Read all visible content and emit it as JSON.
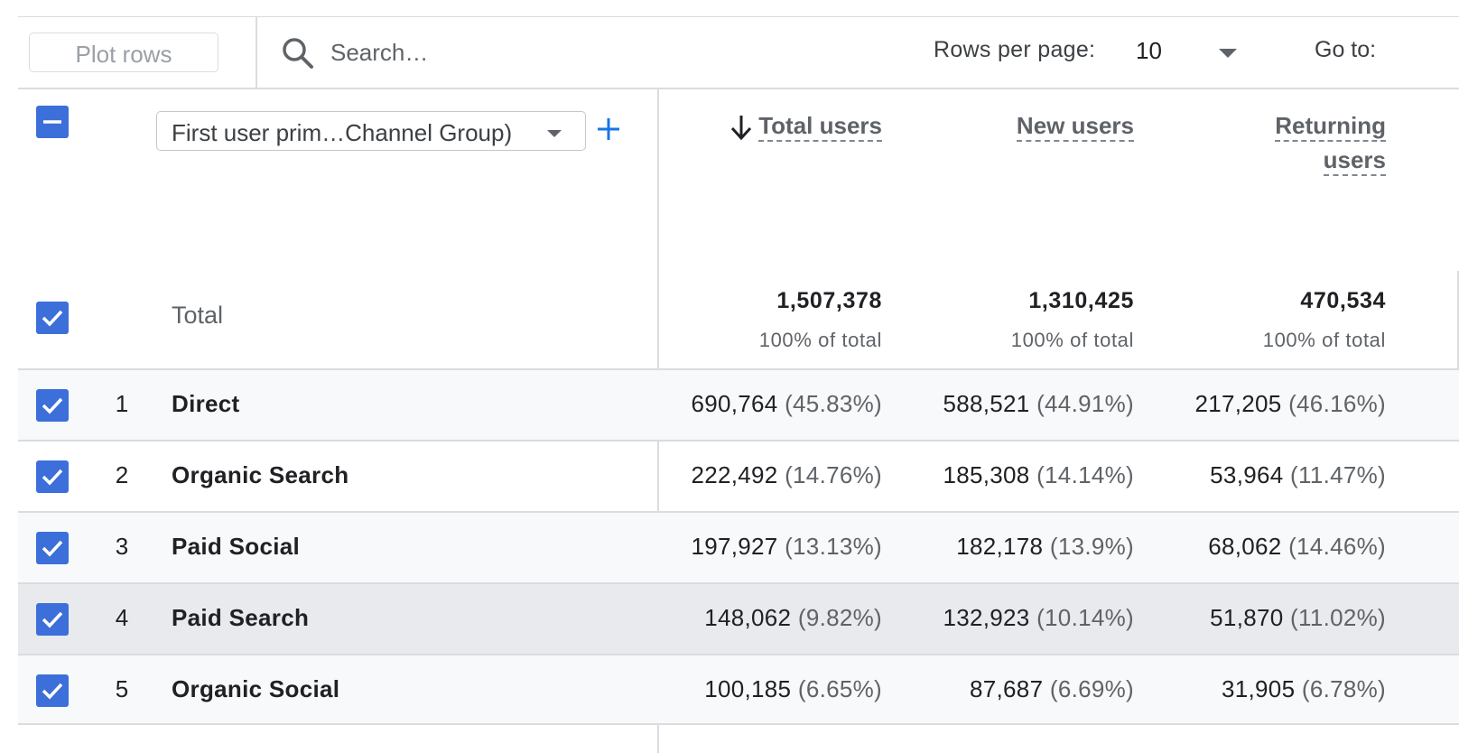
{
  "toolbar": {
    "plot_rows_label": "Plot rows",
    "search_placeholder": "Search…",
    "rows_per_page_label": "Rows per page:",
    "rows_per_page_value": "10",
    "goto_label": "Go to:"
  },
  "header": {
    "dimension_label": "First user prim…Channel Group)",
    "metrics": [
      {
        "label": "Total users",
        "sorted": true
      },
      {
        "label": "New users",
        "sorted": false
      },
      {
        "label_line1": "Returning",
        "label_line2": "users",
        "sorted": false
      }
    ]
  },
  "totals": {
    "label": "Total",
    "values": [
      "1,507,378",
      "1,310,425",
      "470,534"
    ],
    "pcts": [
      "100% of total",
      "100% of total",
      "100% of total"
    ]
  },
  "rows": [
    {
      "num": "1",
      "name": "Direct",
      "cells": [
        [
          "690,764",
          "(45.83%)"
        ],
        [
          "588,521",
          "(44.91%)"
        ],
        [
          "217,205",
          "(46.16%)"
        ]
      ]
    },
    {
      "num": "2",
      "name": "Organic Search",
      "cells": [
        [
          "222,492",
          "(14.76%)"
        ],
        [
          "185,308",
          "(14.14%)"
        ],
        [
          "53,964",
          "(11.47%)"
        ]
      ]
    },
    {
      "num": "3",
      "name": "Paid Social",
      "cells": [
        [
          "197,927",
          "(13.13%)"
        ],
        [
          "182,178",
          "(13.9%)"
        ],
        [
          "68,062",
          "(14.46%)"
        ]
      ]
    },
    {
      "num": "4",
      "name": "Paid Search",
      "cells": [
        [
          "148,062",
          "(9.82%)"
        ],
        [
          "132,923",
          "(10.14%)"
        ],
        [
          "51,870",
          "(11.02%)"
        ]
      ]
    },
    {
      "num": "5",
      "name": "Organic Social",
      "cells": [
        [
          "100,185",
          "(6.65%)"
        ],
        [
          "87,687",
          "(6.69%)"
        ],
        [
          "31,905",
          "(6.78%)"
        ]
      ]
    }
  ],
  "colors": {
    "checkbox": "#3c6fd9",
    "accent": "#1a73e8",
    "border": "#dadce0",
    "muted_text": "#5f6368",
    "row_alt": "#f8f9fa",
    "row_hover": "#e8eaed"
  },
  "icons": {
    "search": "search-icon",
    "dropdown": "caret-down-icon",
    "add": "plus-icon",
    "sort": "arrow-down-icon",
    "checkbox_checked": "checkbox-checked-icon",
    "checkbox_indeterminate": "checkbox-indeterminate-icon"
  }
}
